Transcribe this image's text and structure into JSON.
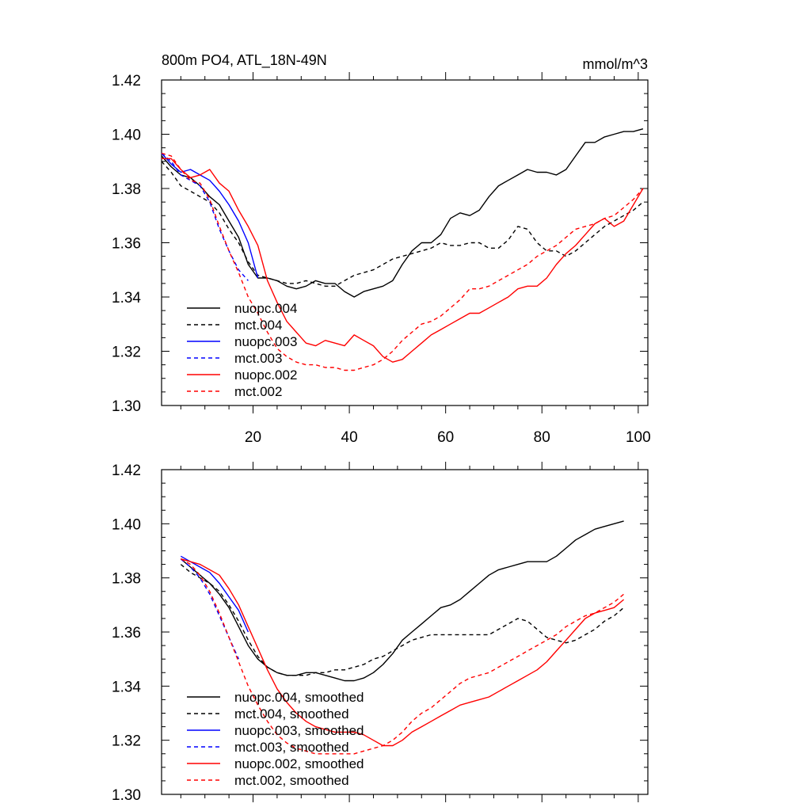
{
  "chart_data": [
    {
      "type": "line",
      "title": "800m PO4, ATL_18N-49N",
      "units": "mmol/m^3",
      "xlim": [
        1,
        102
      ],
      "ylim": [
        1.3,
        1.42
      ],
      "xticks": [
        20,
        40,
        60,
        80,
        100
      ],
      "yticks": [
        1.3,
        1.32,
        1.34,
        1.36,
        1.38,
        1.4,
        1.42
      ],
      "ytick_labels": [
        "1.30",
        "1.32",
        "1.34",
        "1.36",
        "1.38",
        "1.40",
        "1.42"
      ],
      "xtick_labels": [
        "20",
        "40",
        "60",
        "80",
        "100"
      ],
      "show_xtick_labels": true,
      "grid": false,
      "legend_position": "bottom-left",
      "series": [
        {
          "name": "nuopc.004",
          "color": "#000000",
          "dash": "solid",
          "x": [
            1,
            3,
            5,
            7,
            9,
            11,
            13,
            15,
            17,
            19,
            21,
            23,
            25,
            27,
            29,
            31,
            33,
            35,
            37,
            39,
            41,
            43,
            45,
            47,
            49,
            51,
            53,
            55,
            57,
            59,
            61,
            63,
            65,
            67,
            69,
            71,
            73,
            75,
            77,
            79,
            81,
            83,
            85,
            87,
            89,
            91,
            93,
            95,
            97,
            99,
            101
          ],
          "y": [
            1.392,
            1.388,
            1.385,
            1.384,
            1.381,
            1.377,
            1.374,
            1.368,
            1.362,
            1.352,
            1.347,
            1.347,
            1.346,
            1.344,
            1.343,
            1.344,
            1.346,
            1.345,
            1.345,
            1.342,
            1.34,
            1.342,
            1.343,
            1.344,
            1.346,
            1.352,
            1.357,
            1.36,
            1.36,
            1.363,
            1.369,
            1.371,
            1.37,
            1.372,
            1.377,
            1.381,
            1.383,
            1.385,
            1.387,
            1.386,
            1.386,
            1.385,
            1.387,
            1.392,
            1.397,
            1.397,
            1.399,
            1.4,
            1.401,
            1.401,
            1.402
          ]
        },
        {
          "name": "mct.004",
          "color": "#000000",
          "dash": "dashed",
          "x": [
            1,
            3,
            5,
            7,
            9,
            11,
            13,
            15,
            17,
            19,
            21,
            23,
            25,
            27,
            29,
            31,
            33,
            35,
            37,
            39,
            41,
            43,
            45,
            47,
            49,
            51,
            53,
            55,
            57,
            59,
            61,
            63,
            65,
            67,
            69,
            71,
            73,
            75,
            77,
            79,
            81,
            83,
            85,
            87,
            89,
            91,
            93,
            95,
            97,
            99,
            101
          ],
          "y": [
            1.39,
            1.386,
            1.381,
            1.379,
            1.377,
            1.375,
            1.371,
            1.365,
            1.36,
            1.353,
            1.348,
            1.347,
            1.346,
            1.345,
            1.345,
            1.346,
            1.345,
            1.344,
            1.344,
            1.346,
            1.348,
            1.349,
            1.35,
            1.352,
            1.354,
            1.355,
            1.356,
            1.357,
            1.358,
            1.36,
            1.359,
            1.359,
            1.36,
            1.36,
            1.358,
            1.358,
            1.361,
            1.366,
            1.365,
            1.36,
            1.357,
            1.357,
            1.355,
            1.357,
            1.36,
            1.363,
            1.366,
            1.368,
            1.37,
            1.372,
            1.375
          ]
        },
        {
          "name": "nuopc.003",
          "color": "#0000ff",
          "dash": "solid",
          "x": [
            1,
            3,
            5,
            7,
            9,
            11,
            13,
            15,
            17,
            19,
            21
          ],
          "y": [
            1.393,
            1.389,
            1.386,
            1.387,
            1.385,
            1.383,
            1.379,
            1.374,
            1.368,
            1.36,
            1.347
          ]
        },
        {
          "name": "mct.003",
          "color": "#0000ff",
          "dash": "dashed",
          "x": [
            1,
            3,
            5,
            7,
            9,
            11,
            13,
            15,
            17,
            19
          ],
          "y": [
            1.393,
            1.39,
            1.385,
            1.383,
            1.381,
            1.375,
            1.365,
            1.357,
            1.35,
            1.346
          ]
        },
        {
          "name": "nuopc.002",
          "color": "#ff0000",
          "dash": "solid",
          "x": [
            1,
            3,
            5,
            7,
            9,
            11,
            13,
            15,
            17,
            19,
            21,
            23,
            25,
            27,
            29,
            31,
            33,
            35,
            37,
            39,
            41,
            43,
            45,
            47,
            49,
            51,
            53,
            55,
            57,
            59,
            61,
            63,
            65,
            67,
            69,
            71,
            73,
            75,
            77,
            79,
            81,
            83,
            85,
            87,
            89,
            91,
            93,
            95,
            97,
            99,
            101
          ],
          "y": [
            1.391,
            1.391,
            1.387,
            1.384,
            1.385,
            1.387,
            1.382,
            1.379,
            1.372,
            1.366,
            1.359,
            1.346,
            1.338,
            1.331,
            1.327,
            1.323,
            1.322,
            1.324,
            1.323,
            1.322,
            1.326,
            1.324,
            1.322,
            1.318,
            1.316,
            1.317,
            1.32,
            1.323,
            1.326,
            1.328,
            1.33,
            1.332,
            1.334,
            1.334,
            1.336,
            1.338,
            1.34,
            1.343,
            1.344,
            1.344,
            1.347,
            1.352,
            1.356,
            1.359,
            1.363,
            1.367,
            1.369,
            1.366,
            1.368,
            1.374,
            1.38
          ]
        },
        {
          "name": "mct.002",
          "color": "#ff0000",
          "dash": "dashed",
          "x": [
            1,
            3,
            5,
            7,
            9,
            11,
            13,
            15,
            17,
            19,
            21,
            23,
            25,
            27,
            29,
            31,
            33,
            35,
            37,
            39,
            41,
            43,
            45,
            47,
            49,
            51,
            53,
            55,
            57,
            59,
            61,
            63,
            65,
            67,
            69,
            71,
            73,
            75,
            77,
            79,
            81,
            83,
            85,
            87,
            89,
            91,
            93,
            95,
            97,
            99,
            101
          ],
          "y": [
            1.393,
            1.392,
            1.387,
            1.383,
            1.382,
            1.376,
            1.366,
            1.357,
            1.349,
            1.34,
            1.334,
            1.327,
            1.321,
            1.318,
            1.316,
            1.315,
            1.315,
            1.314,
            1.314,
            1.313,
            1.313,
            1.314,
            1.315,
            1.317,
            1.32,
            1.324,
            1.327,
            1.33,
            1.331,
            1.333,
            1.336,
            1.339,
            1.343,
            1.343,
            1.344,
            1.346,
            1.348,
            1.35,
            1.352,
            1.355,
            1.357,
            1.359,
            1.362,
            1.365,
            1.366,
            1.367,
            1.369,
            1.37,
            1.373,
            1.376,
            1.38
          ]
        }
      ]
    },
    {
      "type": "line",
      "title": "",
      "units": "",
      "xlim": [
        1,
        102
      ],
      "ylim": [
        1.3,
        1.42
      ],
      "xticks": [
        20,
        40,
        60,
        80,
        100
      ],
      "yticks": [
        1.3,
        1.32,
        1.34,
        1.36,
        1.38,
        1.4,
        1.42
      ],
      "ytick_labels": [
        "1.30",
        "1.32",
        "1.34",
        "1.36",
        "1.38",
        "1.40",
        "1.42"
      ],
      "xtick_labels": [],
      "show_xtick_labels": false,
      "grid": false,
      "legend_position": "bottom-left",
      "series": [
        {
          "name": "nuopc.004, smoothed",
          "color": "#000000",
          "dash": "solid",
          "x": [
            5,
            7,
            9,
            11,
            13,
            15,
            17,
            19,
            21,
            23,
            25,
            27,
            29,
            31,
            33,
            35,
            37,
            39,
            41,
            43,
            45,
            47,
            49,
            51,
            53,
            55,
            57,
            59,
            61,
            63,
            65,
            67,
            69,
            71,
            73,
            75,
            77,
            79,
            81,
            83,
            85,
            87,
            89,
            91,
            93,
            95,
            97
          ],
          "y": [
            1.387,
            1.384,
            1.381,
            1.378,
            1.374,
            1.369,
            1.362,
            1.355,
            1.35,
            1.347,
            1.345,
            1.344,
            1.344,
            1.345,
            1.345,
            1.344,
            1.343,
            1.342,
            1.342,
            1.343,
            1.345,
            1.348,
            1.352,
            1.357,
            1.36,
            1.363,
            1.366,
            1.369,
            1.37,
            1.372,
            1.375,
            1.378,
            1.381,
            1.383,
            1.384,
            1.385,
            1.386,
            1.386,
            1.386,
            1.388,
            1.391,
            1.394,
            1.396,
            1.398,
            1.399,
            1.4,
            1.401
          ]
        },
        {
          "name": "mct.004, smoothed",
          "color": "#000000",
          "dash": "dashed",
          "x": [
            5,
            7,
            9,
            11,
            13,
            15,
            17,
            19,
            21,
            23,
            25,
            27,
            29,
            31,
            33,
            35,
            37,
            39,
            41,
            43,
            45,
            47,
            49,
            51,
            53,
            55,
            57,
            59,
            61,
            63,
            65,
            67,
            69,
            71,
            73,
            75,
            77,
            79,
            81,
            83,
            85,
            87,
            89,
            91,
            93,
            95,
            97
          ],
          "y": [
            1.385,
            1.382,
            1.38,
            1.378,
            1.375,
            1.37,
            1.364,
            1.357,
            1.351,
            1.347,
            1.345,
            1.344,
            1.344,
            1.344,
            1.345,
            1.345,
            1.346,
            1.346,
            1.347,
            1.348,
            1.35,
            1.351,
            1.353,
            1.355,
            1.357,
            1.358,
            1.359,
            1.359,
            1.359,
            1.359,
            1.359,
            1.359,
            1.359,
            1.361,
            1.363,
            1.365,
            1.364,
            1.361,
            1.358,
            1.357,
            1.356,
            1.357,
            1.359,
            1.361,
            1.364,
            1.366,
            1.369
          ]
        },
        {
          "name": "nuopc.003, smoothed",
          "color": "#0000ff",
          "dash": "solid",
          "x": [
            5,
            7,
            9,
            11,
            13,
            15,
            17,
            19
          ],
          "y": [
            1.388,
            1.386,
            1.384,
            1.382,
            1.378,
            1.373,
            1.368,
            1.36
          ]
        },
        {
          "name": "mct.003, smoothed",
          "color": "#0000ff",
          "dash": "dashed",
          "x": [
            5,
            7,
            9,
            11,
            13,
            15,
            17
          ],
          "y": [
            1.387,
            1.384,
            1.38,
            1.374,
            1.366,
            1.358,
            1.35
          ]
        },
        {
          "name": "nuopc.002, smoothed",
          "color": "#ff0000",
          "dash": "solid",
          "x": [
            5,
            7,
            9,
            11,
            13,
            15,
            17,
            19,
            21,
            23,
            25,
            27,
            29,
            31,
            33,
            35,
            37,
            39,
            41,
            43,
            45,
            47,
            49,
            51,
            53,
            55,
            57,
            59,
            61,
            63,
            65,
            67,
            69,
            71,
            73,
            75,
            77,
            79,
            81,
            83,
            85,
            87,
            89,
            91,
            93,
            95,
            97
          ],
          "y": [
            1.387,
            1.386,
            1.385,
            1.383,
            1.381,
            1.376,
            1.37,
            1.362,
            1.354,
            1.346,
            1.339,
            1.334,
            1.33,
            1.327,
            1.325,
            1.324,
            1.323,
            1.323,
            1.323,
            1.322,
            1.32,
            1.318,
            1.318,
            1.32,
            1.323,
            1.325,
            1.327,
            1.329,
            1.331,
            1.333,
            1.334,
            1.335,
            1.336,
            1.338,
            1.34,
            1.342,
            1.344,
            1.346,
            1.349,
            1.353,
            1.357,
            1.361,
            1.365,
            1.367,
            1.368,
            1.369,
            1.372
          ]
        },
        {
          "name": "mct.002, smoothed",
          "color": "#ff0000",
          "dash": "dashed",
          "x": [
            5,
            7,
            9,
            11,
            13,
            15,
            17,
            19,
            21,
            23,
            25,
            27,
            29,
            31,
            33,
            35,
            37,
            39,
            41,
            43,
            45,
            47,
            49,
            51,
            53,
            55,
            57,
            59,
            61,
            63,
            65,
            67,
            69,
            71,
            73,
            75,
            77,
            79,
            81,
            83,
            85,
            87,
            89,
            91,
            93,
            95,
            97
          ],
          "y": [
            1.387,
            1.385,
            1.381,
            1.375,
            1.367,
            1.358,
            1.349,
            1.34,
            1.333,
            1.327,
            1.322,
            1.319,
            1.317,
            1.316,
            1.315,
            1.315,
            1.315,
            1.315,
            1.315,
            1.316,
            1.317,
            1.318,
            1.32,
            1.323,
            1.327,
            1.33,
            1.332,
            1.335,
            1.338,
            1.341,
            1.343,
            1.344,
            1.345,
            1.347,
            1.349,
            1.351,
            1.353,
            1.355,
            1.357,
            1.359,
            1.362,
            1.364,
            1.366,
            1.367,
            1.369,
            1.371,
            1.374
          ]
        }
      ]
    }
  ]
}
